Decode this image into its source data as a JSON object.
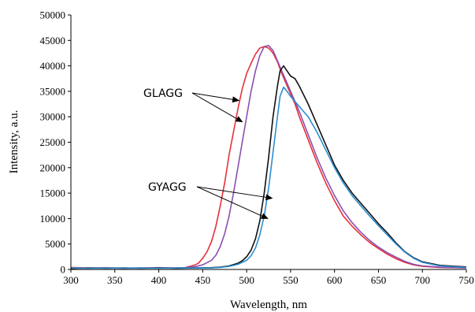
{
  "chart_data": {
    "type": "line",
    "xlabel": "Wavelength, nm",
    "ylabel": "Intensity, a.u.",
    "xlim": [
      300,
      750
    ],
    "ylim": [
      0,
      50000
    ],
    "xticks": [
      300,
      350,
      400,
      450,
      500,
      550,
      600,
      650,
      700,
      750
    ],
    "yticks": [
      0,
      5000,
      10000,
      15000,
      20000,
      25000,
      30000,
      35000,
      40000,
      45000,
      50000
    ],
    "grid": false,
    "legend": "none",
    "series": [
      {
        "color": "#e8303a",
        "points": [
          [
            300,
            400
          ],
          [
            320,
            300
          ],
          [
            340,
            350
          ],
          [
            360,
            250
          ],
          [
            380,
            300
          ],
          [
            400,
            350
          ],
          [
            420,
            300
          ],
          [
            430,
            350
          ],
          [
            440,
            800
          ],
          [
            445,
            1200
          ],
          [
            450,
            2200
          ],
          [
            455,
            3500
          ],
          [
            460,
            5500
          ],
          [
            465,
            8500
          ],
          [
            470,
            12500
          ],
          [
            475,
            17000
          ],
          [
            480,
            22500
          ],
          [
            485,
            27000
          ],
          [
            490,
            31500
          ],
          [
            495,
            35500
          ],
          [
            500,
            38500
          ],
          [
            505,
            40500
          ],
          [
            510,
            42300
          ],
          [
            515,
            43500
          ],
          [
            520,
            43800
          ],
          [
            525,
            43500
          ],
          [
            530,
            42500
          ],
          [
            535,
            40800
          ],
          [
            540,
            38500
          ],
          [
            545,
            36500
          ],
          [
            550,
            34500
          ],
          [
            555,
            32500
          ],
          [
            560,
            30000
          ],
          [
            570,
            25500
          ],
          [
            580,
            21000
          ],
          [
            590,
            17000
          ],
          [
            600,
            13500
          ],
          [
            610,
            10500
          ],
          [
            620,
            8500
          ],
          [
            630,
            6800
          ],
          [
            640,
            5300
          ],
          [
            650,
            4100
          ],
          [
            660,
            3000
          ],
          [
            670,
            2100
          ],
          [
            680,
            1400
          ],
          [
            690,
            900
          ],
          [
            700,
            600
          ],
          [
            720,
            400
          ],
          [
            750,
            300
          ]
        ]
      },
      {
        "color": "#8b4fb0",
        "points": [
          [
            300,
            300
          ],
          [
            320,
            250
          ],
          [
            340,
            300
          ],
          [
            360,
            250
          ],
          [
            380,
            300
          ],
          [
            400,
            300
          ],
          [
            420,
            300
          ],
          [
            430,
            350
          ],
          [
            440,
            500
          ],
          [
            450,
            900
          ],
          [
            460,
            1800
          ],
          [
            465,
            2800
          ],
          [
            470,
            4500
          ],
          [
            475,
            7000
          ],
          [
            480,
            10500
          ],
          [
            485,
            15000
          ],
          [
            490,
            20000
          ],
          [
            495,
            25000
          ],
          [
            500,
            30000
          ],
          [
            505,
            35000
          ],
          [
            510,
            39000
          ],
          [
            515,
            42000
          ],
          [
            520,
            43800
          ],
          [
            525,
            44000
          ],
          [
            530,
            43000
          ],
          [
            535,
            41000
          ],
          [
            540,
            39000
          ],
          [
            545,
            37000
          ],
          [
            550,
            35000
          ],
          [
            555,
            33000
          ],
          [
            560,
            31000
          ],
          [
            570,
            26500
          ],
          [
            580,
            22000
          ],
          [
            590,
            18000
          ],
          [
            600,
            14500
          ],
          [
            610,
            11500
          ],
          [
            620,
            9200
          ],
          [
            630,
            7300
          ],
          [
            640,
            5700
          ],
          [
            650,
            4400
          ],
          [
            660,
            3300
          ],
          [
            670,
            2400
          ],
          [
            680,
            1600
          ],
          [
            690,
            1000
          ],
          [
            700,
            700
          ],
          [
            720,
            450
          ],
          [
            750,
            300
          ]
        ]
      },
      {
        "color": "#111111",
        "points": [
          [
            300,
            200
          ],
          [
            320,
            300
          ],
          [
            340,
            250
          ],
          [
            360,
            300
          ],
          [
            380,
            250
          ],
          [
            400,
            300
          ],
          [
            420,
            250
          ],
          [
            440,
            300
          ],
          [
            460,
            350
          ],
          [
            470,
            450
          ],
          [
            480,
            700
          ],
          [
            490,
            1200
          ],
          [
            495,
            1700
          ],
          [
            500,
            2500
          ],
          [
            505,
            3800
          ],
          [
            510,
            6000
          ],
          [
            515,
            9500
          ],
          [
            520,
            15000
          ],
          [
            525,
            22000
          ],
          [
            530,
            30000
          ],
          [
            535,
            36000
          ],
          [
            538,
            39000
          ],
          [
            542,
            40000
          ],
          [
            546,
            39000
          ],
          [
            550,
            38000
          ],
          [
            555,
            37500
          ],
          [
            560,
            36000
          ],
          [
            570,
            32500
          ],
          [
            580,
            28500
          ],
          [
            590,
            24500
          ],
          [
            600,
            20500
          ],
          [
            610,
            17500
          ],
          [
            620,
            15000
          ],
          [
            630,
            13000
          ],
          [
            640,
            11000
          ],
          [
            650,
            9000
          ],
          [
            660,
            7200
          ],
          [
            670,
            5200
          ],
          [
            680,
            3500
          ],
          [
            690,
            2300
          ],
          [
            700,
            1500
          ],
          [
            720,
            800
          ],
          [
            750,
            500
          ]
        ]
      },
      {
        "color": "#2a8ed0",
        "points": [
          [
            300,
            300
          ],
          [
            320,
            250
          ],
          [
            340,
            300
          ],
          [
            360,
            250
          ],
          [
            380,
            300
          ],
          [
            400,
            250
          ],
          [
            420,
            300
          ],
          [
            440,
            300
          ],
          [
            460,
            300
          ],
          [
            470,
            400
          ],
          [
            480,
            600
          ],
          [
            490,
            1000
          ],
          [
            500,
            1800
          ],
          [
            505,
            2700
          ],
          [
            510,
            4200
          ],
          [
            515,
            6800
          ],
          [
            520,
            10500
          ],
          [
            525,
            16000
          ],
          [
            530,
            23000
          ],
          [
            535,
            30000
          ],
          [
            538,
            34000
          ],
          [
            542,
            35800
          ],
          [
            546,
            35000
          ],
          [
            550,
            34000
          ],
          [
            555,
            33000
          ],
          [
            560,
            32000
          ],
          [
            570,
            30000
          ],
          [
            580,
            27000
          ],
          [
            590,
            23500
          ],
          [
            600,
            20000
          ],
          [
            610,
            17000
          ],
          [
            620,
            14500
          ],
          [
            630,
            12500
          ],
          [
            640,
            10500
          ],
          [
            650,
            8600
          ],
          [
            660,
            6800
          ],
          [
            670,
            5000
          ],
          [
            680,
            3400
          ],
          [
            690,
            2200
          ],
          [
            700,
            1400
          ],
          [
            720,
            700
          ],
          [
            750,
            400
          ]
        ]
      }
    ],
    "annotations": [
      {
        "text": "GLAGG",
        "arrows_to": [
          [
            491,
            33200
          ],
          [
            495,
            29000
          ]
        ]
      },
      {
        "text": "GYAGG",
        "arrows_to": [
          [
            529,
            14000
          ],
          [
            524,
            10000
          ]
        ]
      }
    ]
  }
}
